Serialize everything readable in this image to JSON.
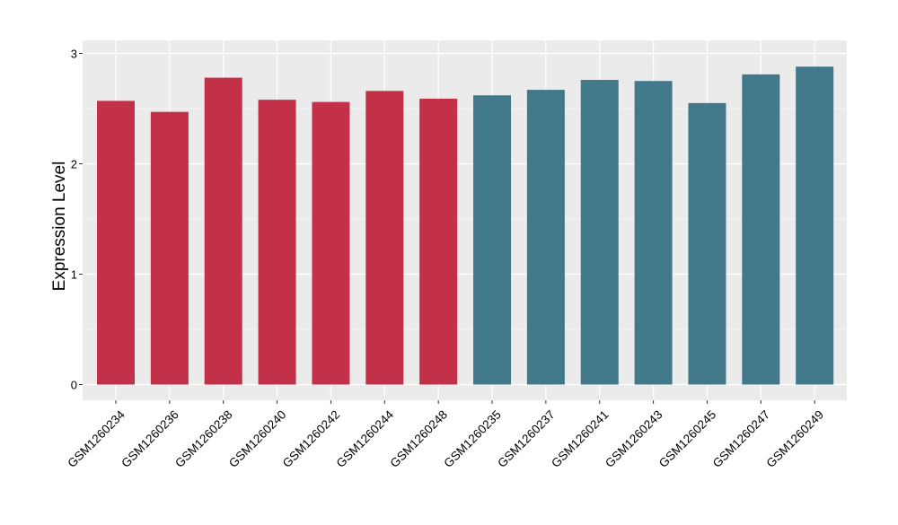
{
  "chart_data": {
    "type": "bar",
    "ylabel": "Expression Level",
    "xlabel": "",
    "ylim": [
      0,
      3
    ],
    "yticks": [
      0,
      1,
      2,
      3
    ],
    "grid": true,
    "background": "#EBEBEB",
    "gridline_color": "#FFFFFF",
    "categories": [
      "GSM1260234",
      "GSM1260236",
      "GSM1260238",
      "GSM1260240",
      "GSM1260242",
      "GSM1260244",
      "GSM1260248",
      "GSM1260235",
      "GSM1260237",
      "GSM1260241",
      "GSM1260243",
      "GSM1260245",
      "GSM1260247",
      "GSM1260249"
    ],
    "values": [
      2.57,
      2.47,
      2.78,
      2.58,
      2.56,
      2.66,
      2.59,
      2.62,
      2.67,
      2.76,
      2.75,
      2.55,
      2.81,
      2.88
    ],
    "groups": [
      "a",
      "a",
      "a",
      "a",
      "a",
      "a",
      "a",
      "b",
      "b",
      "b",
      "b",
      "b",
      "b",
      "b"
    ],
    "group_colors": {
      "a": "#C33149",
      "b": "#42798A"
    }
  }
}
